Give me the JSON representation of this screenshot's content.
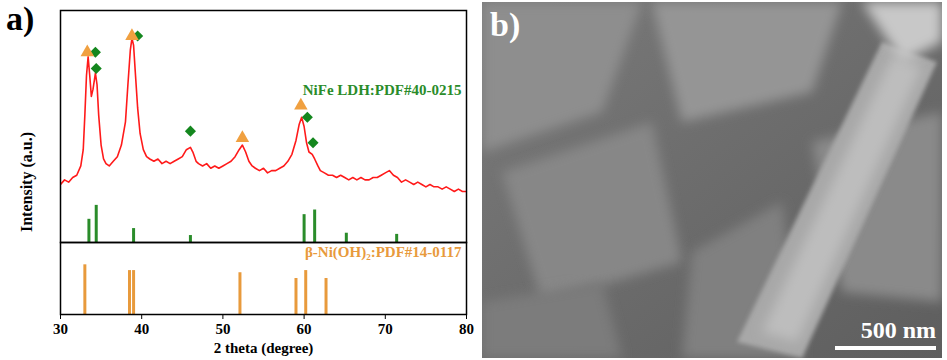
{
  "chart_data": [
    {
      "type": "line",
      "title": "a)",
      "ylabel": "Intensity (a.u.)",
      "xlim": [
        30,
        80
      ],
      "ylim": [
        0,
        100
      ],
      "tick_labels": false,
      "series": [
        {
          "type": "line",
          "color": "#ff1a1a",
          "x": [
            30,
            30.5,
            31,
            31.5,
            32,
            32.5,
            32.8,
            33,
            33.2,
            33.4,
            33.6,
            33.8,
            34,
            34.3,
            34.5,
            34.7,
            35,
            35.3,
            35.6,
            36,
            36.5,
            37,
            37.5,
            38,
            38.3,
            38.6,
            38.8,
            39,
            39.2,
            39.5,
            39.8,
            40.2,
            40.6,
            41,
            41.5,
            42,
            42.5,
            43,
            43.5,
            44,
            44.5,
            45,
            45.5,
            46,
            46.3,
            46.7,
            47,
            47.5,
            48,
            48.5,
            49,
            49.5,
            50,
            50.5,
            51,
            51.5,
            52,
            52.4,
            52.8,
            53.2,
            53.6,
            54,
            54.5,
            55,
            55.5,
            56,
            56.5,
            57,
            57.5,
            58,
            58.5,
            59,
            59.4,
            59.7,
            60,
            60.3,
            60.6,
            61,
            61.3,
            61.7,
            62,
            62.5,
            63,
            63.5,
            64,
            64.5,
            65,
            65.5,
            66,
            66.5,
            67,
            67.5,
            68,
            68.5,
            69,
            69.5,
            70,
            70.5,
            71,
            71.5,
            72,
            72.5,
            73,
            73.5,
            74,
            74.5,
            75,
            75.5,
            76,
            76.5,
            77,
            77.5,
            78,
            78.5,
            79,
            79.5,
            80
          ],
          "values": [
            25,
            27,
            26,
            28,
            29,
            33,
            40,
            55,
            72,
            80,
            72,
            63,
            66,
            73,
            68,
            55,
            42,
            36,
            34,
            33,
            35,
            37,
            42,
            52,
            68,
            83,
            88,
            85,
            74,
            58,
            47,
            40,
            37,
            36,
            35,
            36,
            34,
            35,
            34,
            35,
            36,
            37,
            40,
            41,
            39,
            35,
            34,
            33,
            34,
            32,
            33,
            32,
            33,
            34,
            35,
            37,
            40,
            42,
            39,
            35,
            33,
            32,
            31,
            32,
            30,
            31,
            31,
            32,
            33,
            35,
            38,
            44,
            51,
            54,
            50,
            43,
            39,
            38,
            36,
            33,
            31,
            30,
            29,
            29,
            28,
            29,
            28,
            27,
            28,
            27,
            28,
            27,
            27,
            28,
            28,
            29,
            30,
            31,
            29,
            28,
            26,
            27,
            26,
            25,
            26,
            25,
            24,
            25,
            24,
            24,
            23,
            24,
            23,
            22,
            23,
            22,
            22
          ]
        },
        {
          "type": "stick",
          "name": "NiFe LDH:PDF#40-0215",
          "color": "#2a8c2a",
          "legend": "right",
          "x": [
            33.5,
            34.4,
            39.0,
            46.0,
            60.0,
            61.3,
            65.2,
            71.4
          ],
          "values": [
            10,
            16,
            6,
            3,
            12,
            14,
            4,
            3.5
          ]
        },
        {
          "type": "scatter",
          "marker": "diamond",
          "color": "#14871e",
          "x": [
            34.3,
            34.4,
            39.5,
            46.0,
            60.4,
            61.1
          ],
          "values": [
            82,
            75,
            89,
            48,
            54,
            43
          ]
        },
        {
          "type": "scatter",
          "marker": "triangle",
          "color": "#f0a040",
          "x": [
            33.3,
            38.8,
            52.4,
            59.6
          ],
          "values": [
            82,
            89,
            45,
            59
          ]
        }
      ]
    },
    {
      "type": "stick",
      "xlabel": "2 theta (degree)",
      "xlim": [
        30,
        80
      ],
      "xticks": [
        30,
        40,
        50,
        60,
        70,
        80
      ],
      "ylim": [
        0,
        100
      ],
      "tick_labels": "x",
      "series": [
        {
          "type": "stick",
          "name": "β-Ni(OH)₂:PDF#14-0117",
          "color": "#e89a3c",
          "legend": "upper right",
          "x": [
            33.0,
            38.5,
            39.0,
            52.1,
            59.0,
            60.2,
            62.7
          ],
          "values": [
            69,
            61,
            61,
            58,
            50,
            61,
            50
          ]
        }
      ]
    }
  ],
  "image_panel": {
    "label": "b)",
    "scale_bar": "500 nm"
  }
}
